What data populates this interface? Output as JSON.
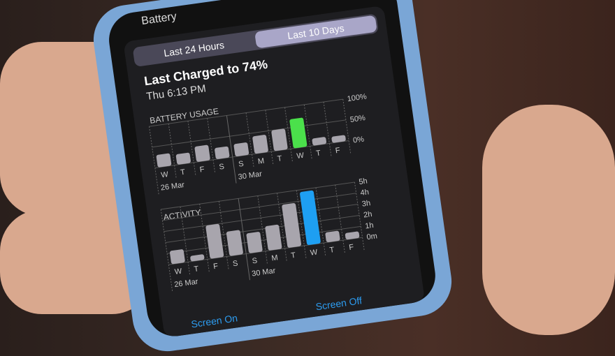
{
  "header": {
    "title": "Battery"
  },
  "segments": {
    "last_24": "Last 24 Hours",
    "last_10": "Last 10 Days",
    "selected": "Last 10 Days"
  },
  "charge": {
    "title": "Last Charged to 74%",
    "time": "Thu 6:13 PM"
  },
  "colors": {
    "highlight_battery": "#4be04b",
    "highlight_activity": "#1e9ff2",
    "bar": "#a8a5ad"
  },
  "chart_data": [
    {
      "type": "bar",
      "title": "BATTERY USAGE",
      "categories": [
        "W",
        "T",
        "F",
        "S",
        "S",
        "M",
        "T",
        "W",
        "T",
        "F"
      ],
      "date_labels": [
        "26 Mar",
        "30 Mar"
      ],
      "values": [
        30,
        25,
        37,
        27,
        30,
        42,
        50,
        70,
        17,
        15
      ],
      "highlight_index": 7,
      "yticks": [
        "100%",
        "50%",
        "0%"
      ],
      "ylim": [
        0,
        100
      ],
      "grid": true
    },
    {
      "type": "bar",
      "title": "ACTIVITY",
      "categories": [
        "W",
        "T",
        "F",
        "S",
        "S",
        "M",
        "T",
        "W",
        "T",
        "F"
      ],
      "date_labels": [
        "26 Mar",
        "30 Mar"
      ],
      "values": [
        1.2,
        0.5,
        3.0,
        2.2,
        1.8,
        2.2,
        3.9,
        4.8,
        0.9,
        0.6
      ],
      "highlight_index": 7,
      "yticks": [
        "5h",
        "4h",
        "3h",
        "2h",
        "1h",
        "0m"
      ],
      "ylim": [
        0,
        5
      ],
      "grid": true
    }
  ],
  "footer": {
    "screen_on": "Screen On",
    "screen_off": "Screen Off"
  }
}
